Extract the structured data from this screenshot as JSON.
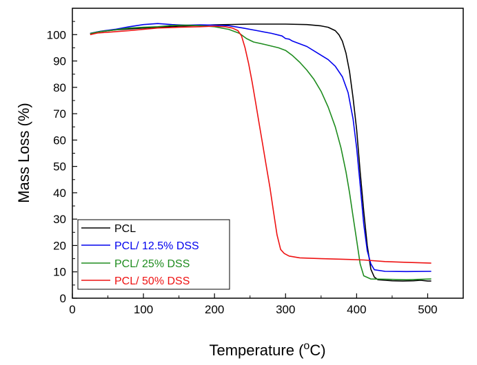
{
  "chart_data": {
    "type": "line",
    "title": "",
    "xlabel_main": "Temperature (",
    "xlabel_sup": "o",
    "xlabel_unit": "C)",
    "ylabel": "Mass Loss (%)",
    "xlim": [
      0,
      550
    ],
    "ylim": [
      0,
      110
    ],
    "x_ticks": [
      0,
      100,
      200,
      300,
      400,
      500
    ],
    "y_ticks": [
      0,
      10,
      20,
      30,
      40,
      50,
      60,
      70,
      80,
      90,
      100
    ],
    "x_tick_labels": [
      "0",
      "100",
      "200",
      "300",
      "400",
      "500"
    ],
    "y_tick_labels": [
      "0",
      "10",
      "20",
      "30",
      "40",
      "50",
      "60",
      "70",
      "80",
      "90",
      "100"
    ],
    "legend_position": "bottom-left",
    "series": [
      {
        "name": "PCL",
        "color": "#000000",
        "points": [
          [
            25,
            100.3
          ],
          [
            35,
            101.0
          ],
          [
            60,
            101.8
          ],
          [
            100,
            102.5
          ],
          [
            150,
            103.2
          ],
          [
            200,
            103.7
          ],
          [
            250,
            104.0
          ],
          [
            300,
            104.0
          ],
          [
            330,
            103.8
          ],
          [
            350,
            103.3
          ],
          [
            360,
            102.8
          ],
          [
            370,
            101.5
          ],
          [
            375,
            100.0
          ],
          [
            380,
            97.5
          ],
          [
            385,
            93.0
          ],
          [
            390,
            86.0
          ],
          [
            395,
            76.0
          ],
          [
            400,
            64.0
          ],
          [
            405,
            48.0
          ],
          [
            410,
            33.0
          ],
          [
            415,
            20.0
          ],
          [
            420,
            11.0
          ],
          [
            425,
            8.0
          ],
          [
            430,
            7.0
          ],
          [
            440,
            6.8
          ],
          [
            450,
            6.6
          ],
          [
            465,
            6.5
          ],
          [
            480,
            6.6
          ],
          [
            490,
            6.8
          ],
          [
            500,
            6.5
          ],
          [
            505,
            6.5
          ]
        ]
      },
      {
        "name": "PCL/ 12.5% DSS",
        "color": "#0000ee",
        "points": [
          [
            25,
            100.5
          ],
          [
            40,
            101.3
          ],
          [
            60,
            102.0
          ],
          [
            80,
            103.0
          ],
          [
            100,
            103.8
          ],
          [
            120,
            104.2
          ],
          [
            140,
            103.8
          ],
          [
            160,
            103.6
          ],
          [
            180,
            103.7
          ],
          [
            200,
            103.6
          ],
          [
            220,
            103.4
          ],
          [
            240,
            102.5
          ],
          [
            260,
            101.5
          ],
          [
            280,
            100.5
          ],
          [
            295,
            99.5
          ],
          [
            300,
            98.5
          ],
          [
            305,
            98.3
          ],
          [
            310,
            97.5
          ],
          [
            330,
            95.5
          ],
          [
            345,
            93.0
          ],
          [
            360,
            90.5
          ],
          [
            370,
            88.0
          ],
          [
            380,
            84.0
          ],
          [
            388,
            78.0
          ],
          [
            395,
            68.0
          ],
          [
            400,
            57.0
          ],
          [
            405,
            43.0
          ],
          [
            410,
            28.0
          ],
          [
            415,
            18.0
          ],
          [
            420,
            13.0
          ],
          [
            425,
            10.8
          ],
          [
            440,
            10.2
          ],
          [
            470,
            10.1
          ],
          [
            505,
            10.2
          ]
        ]
      },
      {
        "name": "PCL/ 25% DSS",
        "color": "#1e8c1e",
        "points": [
          [
            25,
            100.4
          ],
          [
            40,
            101.2
          ],
          [
            60,
            101.8
          ],
          [
            80,
            102.5
          ],
          [
            100,
            102.8
          ],
          [
            120,
            103.0
          ],
          [
            140,
            103.5
          ],
          [
            160,
            103.6
          ],
          [
            180,
            103.4
          ],
          [
            200,
            103.0
          ],
          [
            220,
            102.0
          ],
          [
            235,
            100.5
          ],
          [
            245,
            98.5
          ],
          [
            255,
            97.2
          ],
          [
            270,
            96.3
          ],
          [
            290,
            95.0
          ],
          [
            300,
            94.0
          ],
          [
            310,
            92.0
          ],
          [
            320,
            89.5
          ],
          [
            330,
            86.5
          ],
          [
            340,
            83.0
          ],
          [
            350,
            78.5
          ],
          [
            360,
            72.5
          ],
          [
            370,
            65.0
          ],
          [
            378,
            57.0
          ],
          [
            385,
            48.0
          ],
          [
            390,
            40.0
          ],
          [
            395,
            31.0
          ],
          [
            400,
            22.0
          ],
          [
            405,
            13.0
          ],
          [
            410,
            8.5
          ],
          [
            420,
            7.3
          ],
          [
            440,
            7.2
          ],
          [
            470,
            7.0
          ],
          [
            505,
            7.3
          ]
        ]
      },
      {
        "name": "PCL/ 50% DSS",
        "color": "#ee1111",
        "points": [
          [
            25,
            100.0
          ],
          [
            35,
            100.6
          ],
          [
            55,
            101.0
          ],
          [
            80,
            101.5
          ],
          [
            100,
            102.0
          ],
          [
            120,
            102.5
          ],
          [
            150,
            102.8
          ],
          [
            180,
            103.0
          ],
          [
            200,
            103.2
          ],
          [
            215,
            103.0
          ],
          [
            225,
            102.5
          ],
          [
            233,
            101.5
          ],
          [
            238,
            99.5
          ],
          [
            243,
            95.0
          ],
          [
            248,
            89.0
          ],
          [
            253,
            82.0
          ],
          [
            258,
            74.0
          ],
          [
            263,
            66.0
          ],
          [
            268,
            58.0
          ],
          [
            273,
            50.0
          ],
          [
            278,
            42.0
          ],
          [
            283,
            33.0
          ],
          [
            288,
            24.0
          ],
          [
            293,
            18.5
          ],
          [
            298,
            17.0
          ],
          [
            305,
            16.0
          ],
          [
            320,
            15.3
          ],
          [
            350,
            15.0
          ],
          [
            380,
            14.8
          ],
          [
            410,
            14.5
          ],
          [
            440,
            13.9
          ],
          [
            470,
            13.6
          ],
          [
            505,
            13.3
          ]
        ]
      }
    ]
  }
}
